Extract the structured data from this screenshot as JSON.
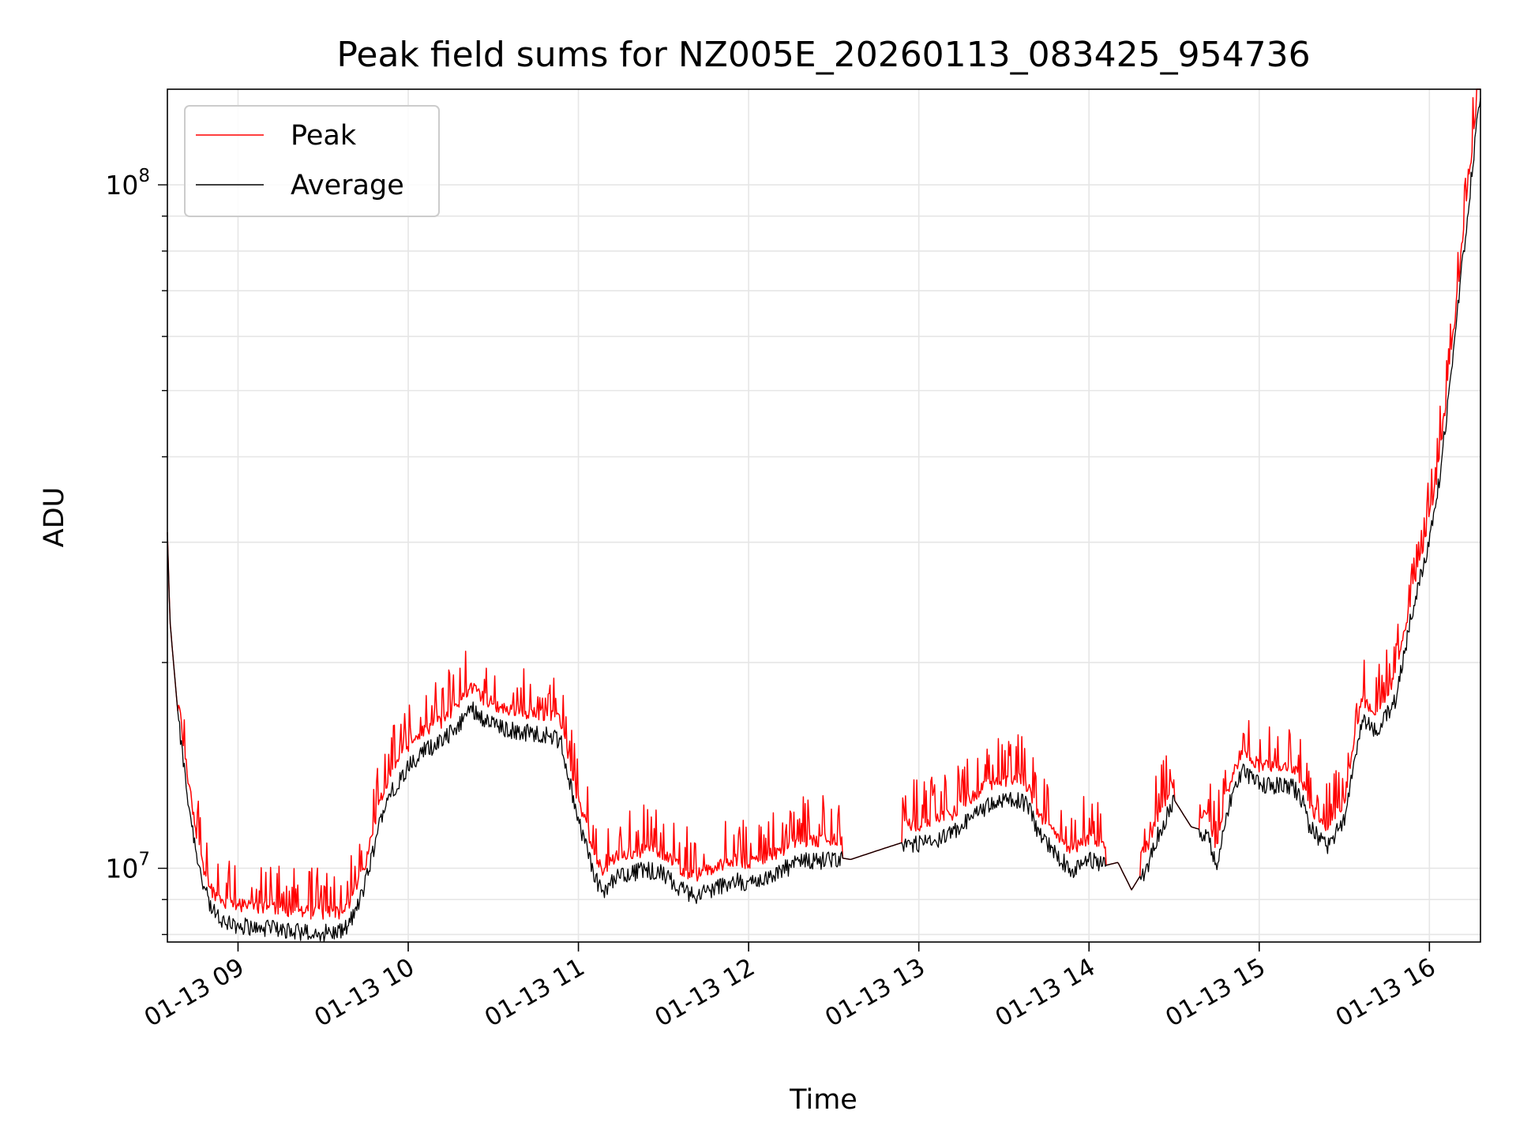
{
  "chart_data": {
    "type": "line",
    "title": "Peak field sums for NZ005E_20260113_083425_954736",
    "xlabel": "Time",
    "ylabel": "ADU",
    "yscale": "log",
    "ylim": [
      7800000,
      138000000
    ],
    "xlim_hours": [
      8.585,
      16.3
    ],
    "grid": true,
    "legend_position": "upper-left",
    "x_tick_labels": [
      "01-13 09",
      "01-13 10",
      "01-13 11",
      "01-13 12",
      "01-13 13",
      "01-13 14",
      "01-13 15",
      "01-13 16"
    ],
    "x_tick_hours": [
      9,
      10,
      11,
      12,
      13,
      14,
      15,
      16
    ],
    "y_major_ticks": [
      {
        "value": 10000000,
        "base": "10",
        "exp": "7"
      },
      {
        "value": 100000000,
        "base": "10",
        "exp": "8"
      }
    ],
    "series": [
      {
        "name": "Peak",
        "color": "#ff0000",
        "note": "Peak tracks the average with frequent upward spikes (about 5-25% higher).",
        "spike_ranges_hours": [
          [
            8.65,
            9.85
          ],
          [
            9.85,
            10.95
          ],
          [
            10.95,
            11.9
          ],
          [
            11.9,
            12.55
          ],
          [
            12.9,
            13.85
          ],
          [
            13.85,
            14.1
          ],
          [
            14.3,
            14.5
          ],
          [
            14.65,
            15.35
          ],
          [
            15.35,
            16.3
          ]
        ]
      },
      {
        "name": "Average",
        "color": "#000000",
        "x_hours": [
          8.585,
          8.6,
          8.65,
          8.7,
          8.75,
          8.8,
          8.85,
          8.9,
          8.95,
          9.0,
          9.1,
          9.2,
          9.3,
          9.4,
          9.5,
          9.6,
          9.65,
          9.7,
          9.75,
          9.8,
          9.85,
          9.9,
          10.0,
          10.1,
          10.2,
          10.3,
          10.37,
          10.45,
          10.55,
          10.7,
          10.8,
          10.85,
          10.9,
          10.95,
          11.0,
          11.05,
          11.1,
          11.15,
          11.2,
          11.3,
          11.4,
          11.5,
          11.55,
          11.6,
          11.65,
          11.7,
          11.8,
          11.9,
          12.0,
          12.1,
          12.2,
          12.3,
          12.4,
          12.5,
          12.6,
          12.7,
          12.8,
          12.9,
          13.0,
          13.1,
          13.2,
          13.3,
          13.4,
          13.5,
          13.6,
          13.65,
          13.7,
          13.8,
          13.9,
          14.0,
          14.1,
          14.17,
          14.25,
          14.35,
          14.4,
          14.5,
          14.6,
          14.65,
          14.7,
          14.75,
          14.8,
          14.9,
          15.0,
          15.1,
          15.2,
          15.25,
          15.3,
          15.4,
          15.5,
          15.6,
          15.7,
          15.8,
          15.9,
          16.0,
          16.05,
          16.1,
          16.15,
          16.2,
          16.25,
          16.3
        ],
        "values": [
          31000000,
          23000000,
          16500000,
          13000000,
          10800000,
          9400000,
          8700000,
          8450000,
          8350000,
          8300000,
          8250000,
          8200000,
          8150000,
          8100000,
          8100000,
          8100000,
          8300000,
          8800000,
          9600000,
          10800000,
          12200000,
          13000000,
          14200000,
          15000000,
          15400000,
          16400000,
          17300000,
          16600000,
          16100000,
          15900000,
          15800000,
          15700000,
          15300000,
          13400000,
          11800000,
          10800000,
          9700000,
          9200000,
          9700000,
          9900000,
          10000000,
          9900000,
          9600000,
          9400000,
          9250000,
          9200000,
          9400000,
          9650000,
          9550000,
          9750000,
          10000000,
          10300000,
          10300000,
          10400000,
          10300000,
          10500000,
          10700000,
          10900000,
          10900000,
          11000000,
          11300000,
          11900000,
          12400000,
          12600000,
          12700000,
          12300000,
          11300000,
          10600000,
          10000000,
          10400000,
          10100000,
          10200000,
          9300000,
          10200000,
          11200000,
          12600000,
          11500000,
          11400000,
          11100000,
          10100000,
          12000000,
          14000000,
          13300000,
          13300000,
          13200000,
          12700000,
          11500000,
          10800000,
          11800000,
          16500000,
          16000000,
          17800000,
          24000000,
          30500000,
          36000000,
          46000000,
          60000000,
          80000000,
          105000000,
          138000000
        ]
      }
    ]
  }
}
